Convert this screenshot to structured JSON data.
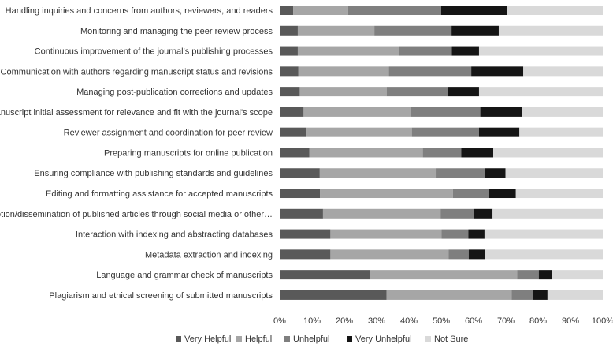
{
  "chart_data": {
    "type": "bar",
    "orientation": "horizontal",
    "stacked": true,
    "percent": true,
    "title": "",
    "xlabel": "",
    "ylabel": "",
    "xlim": [
      0,
      100
    ],
    "x_ticks": [
      "0%",
      "10%",
      "20%",
      "30%",
      "40%",
      "50%",
      "60%",
      "70%",
      "80%",
      "90%",
      "100%"
    ],
    "categories": [
      "Handling inquiries and concerns from authors, reviewers, and readers",
      "Monitoring and managing the peer review process",
      "Continuous improvement of the journal's publishing processes",
      "Communication with authors regarding manuscript status and revisions",
      "Managing post-publication corrections and updates",
      "Manuscript initial assessment for relevance and fit with the journal's scope",
      "Reviewer assignment and coordination for peer review",
      "Preparing manuscripts for online publication",
      "Ensuring compliance with publishing standards and guidelines",
      "Editing and formatting assistance for accepted manuscripts",
      "Promotion/dissemination of published articles through social media or other…",
      "Interaction with indexing and abstracting databases",
      "Metadata extraction and indexing",
      "Language and grammar check of manuscripts",
      "Plagiarism and ethical screening of submitted manuscripts"
    ],
    "series": [
      {
        "name": "Very Helpful",
        "color": "#595959",
        "values": [
          4.2,
          5.6,
          5.6,
          5.8,
          6.2,
          7.4,
          8.3,
          9.2,
          12.4,
          12.5,
          13.4,
          15.7,
          15.7,
          27.9,
          33.1
        ]
      },
      {
        "name": "Helpful",
        "color": "#a6a6a6",
        "values": [
          17.0,
          23.7,
          31.4,
          28.0,
          26.9,
          33.1,
          32.6,
          35.1,
          35.9,
          41.1,
          36.4,
          34.4,
          36.6,
          45.6,
          38.7
        ]
      },
      {
        "name": "Unhelpful",
        "color": "#7f7f7f",
        "values": [
          28.8,
          23.9,
          16.3,
          25.5,
          19.0,
          21.6,
          20.8,
          11.9,
          15.2,
          11.2,
          10.3,
          8.3,
          6.2,
          6.7,
          6.5
        ]
      },
      {
        "name": "Very Unhelpful",
        "color": "#151515",
        "values": [
          20.4,
          14.6,
          8.4,
          16.1,
          9.6,
          12.8,
          12.5,
          9.9,
          6.4,
          8.3,
          5.8,
          5.0,
          5.0,
          4.0,
          4.6
        ]
      },
      {
        "name": "Not Sure",
        "color": "#d9d9d9",
        "values": [
          29.6,
          32.2,
          38.3,
          24.6,
          38.3,
          25.1,
          25.8,
          33.9,
          30.1,
          26.9,
          34.1,
          36.6,
          36.5,
          15.8,
          17.1
        ]
      }
    ],
    "grid": false,
    "legend": "bottom"
  }
}
